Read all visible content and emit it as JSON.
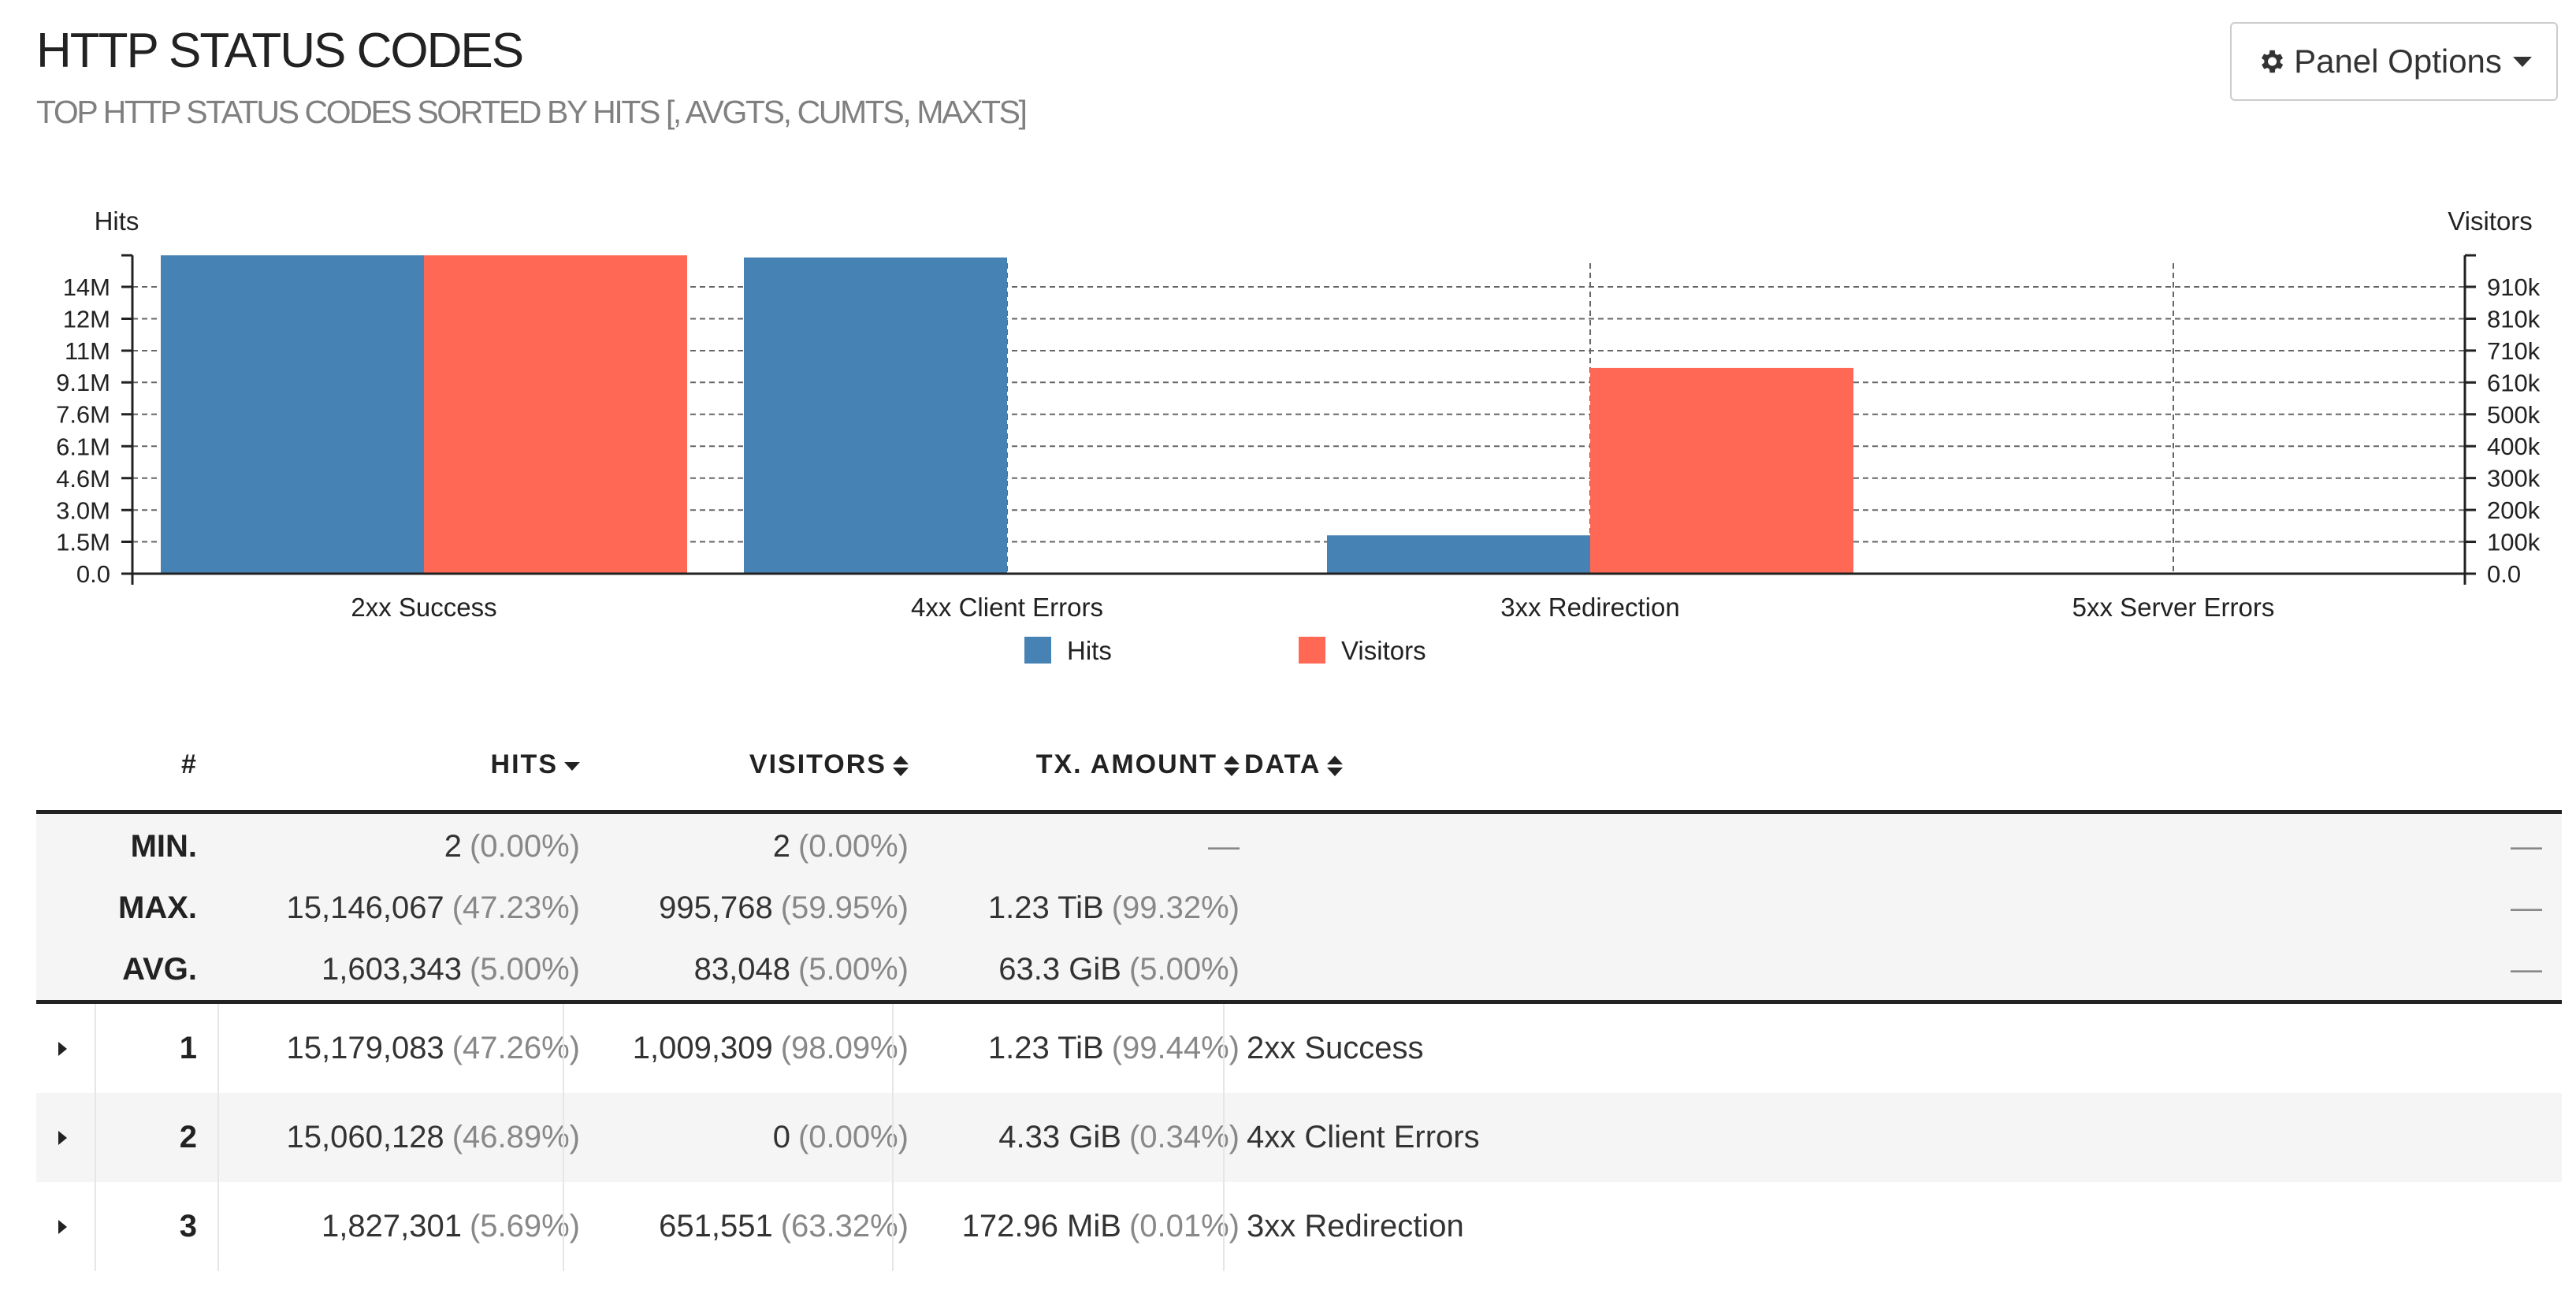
{
  "header": {
    "title": "HTTP STATUS CODES",
    "subtitle": "TOP HTTP STATUS CODES SORTED BY HITS [, AVGTS, CUMTS, MAXTS]",
    "panel_options_label": "Panel Options"
  },
  "colors": {
    "hits": "#4682B4",
    "visitors": "#FF6854"
  },
  "chart_data": {
    "type": "bar",
    "categories": [
      "2xx Success",
      "4xx Client Errors",
      "3xx Redirection",
      "5xx Server Errors"
    ],
    "series": [
      {
        "name": "Hits",
        "axis": "left",
        "values": [
          15179083,
          15060128,
          1827301,
          0
        ]
      },
      {
        "name": "Visitors",
        "axis": "right",
        "values": [
          1009309,
          0,
          651551,
          0
        ]
      }
    ],
    "y_left": {
      "label": "Hits",
      "ticks": [
        {
          "value": 0,
          "label": "0.0"
        },
        {
          "value": 1520000,
          "label": "1.5M"
        },
        {
          "value": 3030000,
          "label": "3.0M"
        },
        {
          "value": 4550000,
          "label": "4.6M"
        },
        {
          "value": 6070000,
          "label": "6.1M"
        },
        {
          "value": 7590000,
          "label": "7.6M"
        },
        {
          "value": 9110000,
          "label": "9.1M"
        },
        {
          "value": 10620000,
          "label": "11M"
        },
        {
          "value": 12140000,
          "label": "12M"
        },
        {
          "value": 13660000,
          "label": "14M"
        }
      ]
    },
    "y_right": {
      "label": "Visitors",
      "ticks": [
        {
          "value": 0,
          "label": "0.0"
        },
        {
          "value": 100930,
          "label": "100k"
        },
        {
          "value": 201860,
          "label": "200k"
        },
        {
          "value": 302790,
          "label": "300k"
        },
        {
          "value": 403720,
          "label": "400k"
        },
        {
          "value": 504650,
          "label": "500k"
        },
        {
          "value": 605580,
          "label": "610k"
        },
        {
          "value": 706510,
          "label": "710k"
        },
        {
          "value": 807440,
          "label": "810k"
        },
        {
          "value": 908370,
          "label": "910k"
        }
      ]
    },
    "legend": [
      {
        "name": "Hits",
        "color": "#4682B4"
      },
      {
        "name": "Visitors",
        "color": "#FF6854"
      }
    ],
    "legend_position": "bottom-center",
    "grid": true
  },
  "table": {
    "headers": {
      "num": "#",
      "hits": "HITS",
      "visitors": "VISITORS",
      "tx": "TX. AMOUNT",
      "data": "DATA"
    },
    "summary": [
      {
        "label": "MIN.",
        "hits": "2",
        "hits_pct": "(0.00%)",
        "visitors": "2",
        "visitors_pct": "(0.00%)",
        "tx": "",
        "tx_pct": "",
        "tx_dash": "—",
        "data_dash": "—"
      },
      {
        "label": "MAX.",
        "hits": "15,146,067",
        "hits_pct": "(47.23%)",
        "visitors": "995,768",
        "visitors_pct": "(59.95%)",
        "tx": "1.23 TiB",
        "tx_pct": "(99.32%)",
        "tx_dash": "",
        "data_dash": "—"
      },
      {
        "label": "AVG.",
        "hits": "1,603,343",
        "hits_pct": "(5.00%)",
        "visitors": "83,048",
        "visitors_pct": "(5.00%)",
        "tx": "63.3 GiB",
        "tx_pct": "(5.00%)",
        "tx_dash": "",
        "data_dash": "—"
      }
    ],
    "rows": [
      {
        "num": "1",
        "hits": "15,179,083",
        "hits_pct": "(47.26%)",
        "visitors": "1,009,309",
        "visitors_pct": "(98.09%)",
        "tx": "1.23 TiB",
        "tx_pct": "(99.44%)",
        "data": "2xx Success"
      },
      {
        "num": "2",
        "hits": "15,060,128",
        "hits_pct": "(46.89%)",
        "visitors": "0",
        "visitors_pct": "(0.00%)",
        "tx": "4.33 GiB",
        "tx_pct": "(0.34%)",
        "data": "4xx Client Errors"
      },
      {
        "num": "3",
        "hits": "1,827,301",
        "hits_pct": "(5.69%)",
        "visitors": "651,551",
        "visitors_pct": "(63.32%)",
        "tx": "172.96 MiB",
        "tx_pct": "(0.01%)",
        "data": "3xx Redirection"
      }
    ]
  }
}
